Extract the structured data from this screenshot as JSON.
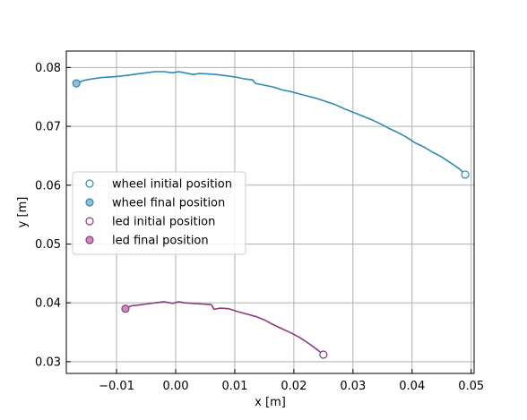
{
  "chart_data": {
    "type": "line",
    "xlabel": "x [m]",
    "ylabel": "y [m]",
    "xlim": [
      -0.0185,
      0.0505
    ],
    "ylim": [
      0.028,
      0.0828
    ],
    "xticks": [
      -0.01,
      0.0,
      0.01,
      0.02,
      0.03,
      0.04,
      0.05
    ],
    "xtick_labels": [
      "−0.01",
      "0.00",
      "0.01",
      "0.02",
      "0.03",
      "0.04",
      "0.05"
    ],
    "yticks": [
      0.03,
      0.04,
      0.05,
      0.06,
      0.07,
      0.08
    ],
    "ytick_labels": [
      "0.03",
      "0.04",
      "0.05",
      "0.06",
      "0.07",
      "0.08"
    ],
    "grid": true,
    "legend_position": "center-left",
    "colors": {
      "wheel": "#2E8AB3",
      "led": "#8E3A80",
      "wheel_final_fill": "#8FBFD6",
      "led_final_fill": "#D08ABE",
      "grid": "#b0b0b0"
    },
    "legend": [
      {
        "label": "wheel initial position",
        "marker": "open",
        "color": "#2E8AB3"
      },
      {
        "label": "wheel final position",
        "marker": "filled",
        "color": "#2E8AB3"
      },
      {
        "label": "led initial position",
        "marker": "open",
        "color": "#8E3A80"
      },
      {
        "label": "led final position",
        "marker": "filled",
        "color": "#8E3A80"
      }
    ],
    "series": [
      {
        "key": "wheel",
        "x": [
          0.049,
          0.048,
          0.0465,
          0.045,
          0.0435,
          0.042,
          0.0405,
          0.039,
          0.0375,
          0.036,
          0.0345,
          0.033,
          0.0315,
          0.03,
          0.0285,
          0.027,
          0.0255,
          0.024,
          0.0225,
          0.021,
          0.0195,
          0.018,
          0.0165,
          0.015,
          0.0135,
          0.013,
          0.0115,
          0.01,
          0.0085,
          0.007,
          0.0055,
          0.004,
          0.003,
          0.0015,
          0.0005,
          -0.0005,
          -0.002,
          -0.0035,
          -0.005,
          -0.0065,
          -0.008,
          -0.0095,
          -0.011,
          -0.0125,
          -0.014,
          -0.0155,
          -0.0168
        ],
        "y": [
          0.0618,
          0.0628,
          0.0638,
          0.0648,
          0.0656,
          0.0665,
          0.0672,
          0.0682,
          0.069,
          0.0697,
          0.0705,
          0.0712,
          0.0718,
          0.0724,
          0.073,
          0.0737,
          0.0742,
          0.0747,
          0.0751,
          0.0755,
          0.0759,
          0.0762,
          0.0767,
          0.077,
          0.0773,
          0.0779,
          0.0781,
          0.0784,
          0.0786,
          0.0788,
          0.0789,
          0.079,
          0.0788,
          0.0791,
          0.0793,
          0.0791,
          0.0793,
          0.0793,
          0.0791,
          0.0789,
          0.0787,
          0.0785,
          0.0784,
          0.0783,
          0.0781,
          0.0778,
          0.0773
        ]
      },
      {
        "key": "led",
        "x": [
          0.025,
          0.024,
          0.0225,
          0.021,
          0.0195,
          0.018,
          0.0165,
          0.015,
          0.0135,
          0.012,
          0.0105,
          0.009,
          0.0075,
          0.0065,
          0.006,
          0.0045,
          0.003,
          0.0015,
          0.0005,
          -0.0005,
          -0.002,
          -0.0035,
          -0.005,
          -0.0065,
          -0.0075,
          -0.0085
        ],
        "y": [
          0.0312,
          0.032,
          0.0331,
          0.0341,
          0.0349,
          0.0356,
          0.0363,
          0.0371,
          0.0377,
          0.0381,
          0.0385,
          0.039,
          0.0391,
          0.0389,
          0.0397,
          0.0398,
          0.0399,
          0.04,
          0.0402,
          0.0399,
          0.0402,
          0.04,
          0.0398,
          0.0396,
          0.0395,
          0.039
        ]
      }
    ]
  }
}
